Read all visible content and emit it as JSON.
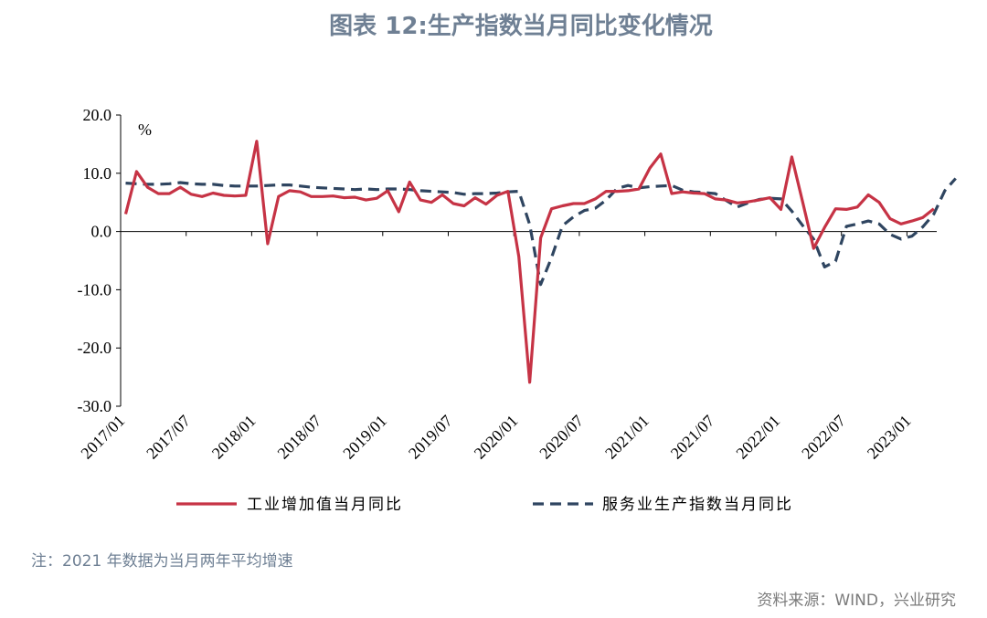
{
  "title": "图表 12:生产指数当月同比变化情况",
  "note": "注：2021 年数据为当月两年平均增速",
  "source": "资料来源：WIND，兴业研究",
  "colors": {
    "industrial": "#c63345",
    "services": "#2f4560",
    "title": "#6f8094"
  },
  "chart_data": {
    "type": "line",
    "unit_label": "%",
    "ylim": [
      -30,
      20
    ],
    "yticks": [
      "20.0",
      "10.0",
      "0.0",
      "-10.0",
      "-20.0",
      "-30.0"
    ],
    "x_tick_labels": [
      "2017/01",
      "2017/07",
      "2018/01",
      "2018/07",
      "2019/01",
      "2019/07",
      "2020/01",
      "2020/07",
      "2021/01",
      "2021/07",
      "2022/01",
      "2022/07",
      "2023/01"
    ],
    "x_start": "2017/01",
    "legend_position": "bottom",
    "series": [
      {
        "name": "工业增加值当月同比",
        "style": "solid",
        "color": "#c63345",
        "values": [
          3.0,
          10.3,
          7.6,
          6.5,
          6.5,
          7.6,
          6.4,
          6.0,
          6.6,
          6.2,
          6.1,
          6.2,
          15.5,
          -2.1,
          6.0,
          7.0,
          6.8,
          6.0,
          6.0,
          6.1,
          5.8,
          5.9,
          5.4,
          5.7,
          7.0,
          3.4,
          8.5,
          5.4,
          5.0,
          6.3,
          4.8,
          4.4,
          5.8,
          4.7,
          6.2,
          6.9,
          -4.3,
          -25.9,
          -1.1,
          3.9,
          4.4,
          4.8,
          4.8,
          5.6,
          6.9,
          6.9,
          7.0,
          7.3,
          10.9,
          13.3,
          6.5,
          6.8,
          6.6,
          6.5,
          5.6,
          5.4,
          4.9,
          5.1,
          5.4,
          5.8,
          3.8,
          12.8,
          5.0,
          -2.9,
          0.7,
          3.9,
          3.8,
          4.2,
          6.3,
          5.0,
          2.2,
          1.3,
          1.8,
          2.4,
          3.9
        ]
      },
      {
        "name": "服务业生产指数当月同比",
        "style": "dashed",
        "color": "#2f4560",
        "values": [
          8.3,
          8.2,
          8.1,
          8.1,
          8.2,
          8.4,
          8.2,
          8.1,
          8.1,
          7.9,
          7.8,
          7.8,
          7.8,
          7.9,
          8.0,
          8.0,
          7.8,
          7.6,
          7.5,
          7.4,
          7.3,
          7.2,
          7.3,
          7.2,
          7.3,
          7.3,
          7.2,
          7.0,
          6.9,
          6.8,
          6.7,
          6.4,
          6.5,
          6.5,
          6.6,
          6.8,
          6.9,
          1.2,
          -9.1,
          -4.5,
          1.0,
          2.5,
          3.6,
          4.0,
          5.4,
          7.4,
          7.9,
          7.5,
          7.7,
          7.8,
          7.9,
          7.1,
          6.8,
          6.7,
          6.5,
          5.3,
          4.2,
          4.9,
          5.5,
          5.7,
          5.6,
          3.5,
          1.0,
          -1.3,
          -6.1,
          -5.1,
          0.9,
          1.3,
          1.8,
          1.3,
          -0.5,
          -1.3,
          -0.8,
          0.8,
          3.0,
          7.0,
          9.1
        ]
      }
    ]
  }
}
